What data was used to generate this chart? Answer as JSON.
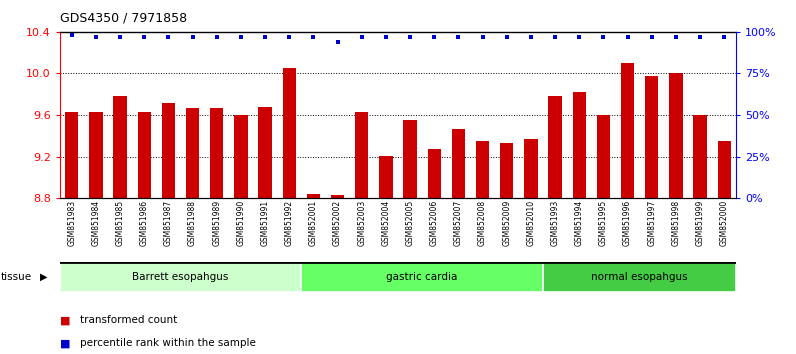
{
  "title": "GDS4350 / 7971858",
  "samples": [
    "GSM851983",
    "GSM851984",
    "GSM851985",
    "GSM851986",
    "GSM851987",
    "GSM851988",
    "GSM851989",
    "GSM851990",
    "GSM851991",
    "GSM851992",
    "GSM852001",
    "GSM852002",
    "GSM852003",
    "GSM852004",
    "GSM852005",
    "GSM852006",
    "GSM852007",
    "GSM852008",
    "GSM852009",
    "GSM852010",
    "GSM851993",
    "GSM851994",
    "GSM851995",
    "GSM851996",
    "GSM851997",
    "GSM851998",
    "GSM851999",
    "GSM852000"
  ],
  "bar_values": [
    9.63,
    9.63,
    9.78,
    9.63,
    9.72,
    9.67,
    9.67,
    9.6,
    9.68,
    10.05,
    8.84,
    8.83,
    9.63,
    9.21,
    9.55,
    9.27,
    9.47,
    9.35,
    9.33,
    9.37,
    9.78,
    9.82,
    9.6,
    10.1,
    9.98,
    10.0,
    9.6,
    9.35
  ],
  "percentile_values": [
    98,
    97,
    97,
    97,
    97,
    97,
    97,
    97,
    97,
    97,
    97,
    94,
    97,
    97,
    97,
    97,
    97,
    97,
    97,
    97,
    97,
    97,
    97,
    97,
    97,
    97,
    97,
    97
  ],
  "tissue_groups": [
    {
      "label": "Barrett esopahgus",
      "start": 0,
      "end": 9
    },
    {
      "label": "gastric cardia",
      "start": 10,
      "end": 19
    },
    {
      "label": "normal esopahgus",
      "start": 20,
      "end": 27
    }
  ],
  "group_colors": [
    "#ccffcc",
    "#66ff66",
    "#44cc44"
  ],
  "ylim": [
    8.8,
    10.4
  ],
  "yticks": [
    8.8,
    9.2,
    9.6,
    10.0,
    10.4
  ],
  "y2ticks": [
    0,
    25,
    50,
    75,
    100
  ],
  "bar_color": "#cc0000",
  "dot_color": "#0000cc",
  "plot_bg": "#ffffff"
}
